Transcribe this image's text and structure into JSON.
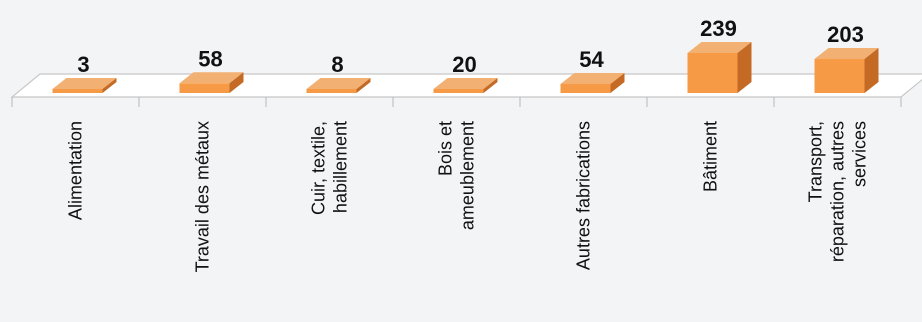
{
  "chart_data": {
    "type": "bar",
    "three_d": true,
    "categories": [
      [
        "Alimentation"
      ],
      [
        "Travail des métaux"
      ],
      [
        "Cuir, textile,",
        "habillement"
      ],
      [
        "Bois et",
        "ameublement"
      ],
      [
        "Autres fabrications"
      ],
      [
        "Bâtiment"
      ],
      [
        "Transport,",
        "réparation, autres",
        "services"
      ]
    ],
    "values": [
      3,
      58,
      8,
      20,
      54,
      239,
      203
    ],
    "value_labels": [
      "3",
      "58",
      "8",
      "20",
      "54",
      "239",
      "203"
    ],
    "title": "",
    "xlabel": "",
    "ylabel": "",
    "ylim": [
      0,
      239
    ],
    "grid": false,
    "legend": "none",
    "colors": {
      "bar_front": "#f79a45",
      "bar_top": "#f2b072",
      "bar_side": "#c46a25",
      "floor_fill": "#ffffff",
      "floor_stroke": "#c8c8c8",
      "background": "#f3f4f6"
    }
  }
}
